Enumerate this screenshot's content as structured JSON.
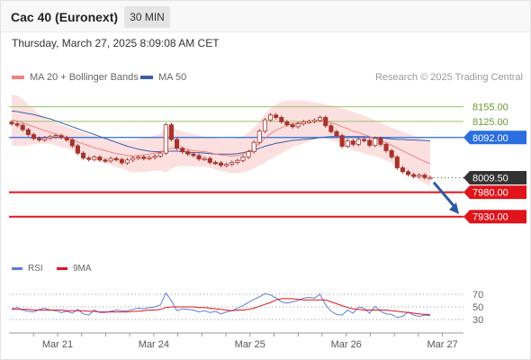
{
  "header": {
    "instrument": "Cac 40 (Euronext)",
    "timeframe": "30 MIN",
    "datetime": "Thursday, March 27, 2025 8:09:08 AM CET"
  },
  "legend": {
    "ma20_bb": "MA 20 + Bollinger Bands",
    "ma50": "MA 50",
    "credit": "Research © 2025 Trading Central",
    "rsi": "RSI",
    "rsi_ma": "9MA"
  },
  "colors": {
    "ma20": "#f08080",
    "ma50": "#3c5fa8",
    "bollinger_fill": "#fbd6d6",
    "candle": "#a8332c",
    "pivot": "#2a6ee0",
    "resistance": "#9cc46a",
    "support": "#e0141b",
    "last": "#333333",
    "rsi": "#5b7fd6",
    "rsi_ma": "#e0141b"
  },
  "chart_data": [
    {
      "type": "candlestick",
      "x_labels": [
        "Mar 21",
        "Mar 24",
        "Mar 25",
        "Mar 26",
        "Mar 27"
      ],
      "ylim": [
        7900,
        8180
      ],
      "levels": [
        {
          "value": 8155.0,
          "label": "8155.00",
          "kind": "resistance"
        },
        {
          "value": 8125.0,
          "label": "8125.00",
          "kind": "resistance"
        },
        {
          "value": 8092.0,
          "label": "8092.00",
          "kind": "pivot"
        },
        {
          "value": 8009.5,
          "label": "8009.50",
          "kind": "last"
        },
        {
          "value": 7980.0,
          "label": "7980.00",
          "kind": "support"
        },
        {
          "value": 7930.0,
          "label": "7930.00",
          "kind": "support"
        }
      ],
      "close": [
        8120,
        8117,
        8108,
        8098,
        8090,
        8087,
        8091,
        8094,
        8096,
        8092,
        8087,
        8075,
        8060,
        8050,
        8047,
        8052,
        8046,
        8044,
        8049,
        8047,
        8040,
        8046,
        8050,
        8052,
        8049,
        8051,
        8054,
        8060,
        8118,
        8088,
        8070,
        8063,
        8058,
        8055,
        8048,
        8049,
        8041,
        8040,
        8035,
        8037,
        8041,
        8045,
        8052,
        8063,
        8082,
        8105,
        8128,
        8138,
        8133,
        8124,
        8118,
        8114,
        8120,
        8124,
        8125,
        8127,
        8133,
        8116,
        8104,
        8096,
        8074,
        8085,
        8078,
        8088,
        8086,
        8076,
        8090,
        8078,
        8065,
        8052,
        8030,
        8022,
        8016,
        8012,
        8015,
        8010,
        8010
      ],
      "ma20": [
        8128,
        8126,
        8122,
        8118,
        8114,
        8110,
        8106,
        8103,
        8099,
        8095,
        8092,
        8088,
        8083,
        8079,
        8075,
        8071,
        8068,
        8065,
        8062,
        8059,
        8057,
        8055,
        8054,
        8055,
        8056,
        8058,
        8060,
        8062,
        8068,
        8070,
        8070,
        8069,
        8067,
        8065,
        8064,
        8063,
        8061,
        8058,
        8056,
        8055,
        8054,
        8055,
        8058,
        8063,
        8070,
        8080,
        8090,
        8100,
        8107,
        8112,
        8117,
        8120,
        8122,
        8124,
        8125,
        8126,
        8127,
        8125,
        8122,
        8119,
        8114,
        8110,
        8105,
        8102,
        8098,
        8094,
        8090,
        8086,
        8081,
        8076,
        8070,
        8065,
        8059,
        8054,
        8048,
        8043,
        8038
      ],
      "ma50": [
        8146,
        8145,
        8143,
        8141,
        8139,
        8136,
        8133,
        8130,
        8126,
        8122,
        8118,
        8114,
        8110,
        8106,
        8102,
        8098,
        8094,
        8090,
        8086,
        8082,
        8078,
        8074,
        8071,
        8068,
        8066,
        8064,
        8063,
        8063,
        8064,
        8064,
        8064,
        8063,
        8062,
        8061,
        8061,
        8060,
        8059,
        8058,
        8058,
        8058,
        8058,
        8059,
        8061,
        8063,
        8066,
        8070,
        8074,
        8077,
        8080,
        8082,
        8084,
        8086,
        8087,
        8088,
        8089,
        8090,
        8092,
        8093,
        8094,
        8094,
        8094,
        8094,
        8094,
        8094,
        8094,
        8093,
        8092,
        8091,
        8090,
        8089,
        8088,
        8088,
        8087,
        8087,
        8086,
        8086,
        8085
      ],
      "bb_upper": [
        8180,
        8178,
        8170,
        8160,
        8150,
        8140,
        8132,
        8127,
        8122,
        8118,
        8114,
        8110,
        8106,
        8102,
        8098,
        8095,
        8092,
        8090,
        8088,
        8087,
        8086,
        8086,
        8087,
        8089,
        8091,
        8093,
        8096,
        8100,
        8115,
        8112,
        8108,
        8104,
        8101,
        8098,
        8096,
        8094,
        8092,
        8090,
        8089,
        8089,
        8089,
        8091,
        8095,
        8102,
        8112,
        8125,
        8140,
        8152,
        8160,
        8165,
        8168,
        8168,
        8168,
        8168,
        8166,
        8164,
        8162,
        8160,
        8158,
        8155,
        8152,
        8148,
        8145,
        8141,
        8137,
        8132,
        8127,
        8122,
        8117,
        8112,
        8108,
        8104,
        8100,
        8096,
        8092,
        8088,
        8084
      ],
      "bb_lower": [
        8076,
        8074,
        8074,
        8076,
        8078,
        8080,
        8080,
        8079,
        8076,
        8072,
        8070,
        8066,
        8060,
        8056,
        8052,
        8047,
        8044,
        8040,
        8036,
        8031,
        8028,
        8024,
        8021,
        8021,
        8021,
        8023,
        8024,
        8024,
        8021,
        8028,
        8032,
        8034,
        8033,
        8032,
        8032,
        8032,
        8030,
        8026,
        8023,
        8021,
        8019,
        8019,
        8021,
        8024,
        8028,
        8035,
        8040,
        8048,
        8054,
        8059,
        8066,
        8072,
        8076,
        8080,
        8084,
        8088,
        8092,
        8090,
        8086,
        8083,
        8076,
        8072,
        8065,
        8063,
        8059,
        8056,
        8053,
        8050,
        8045,
        8040,
        8032,
        8026,
        8018,
        8012,
        8004,
        7998,
        7992
      ]
    },
    {
      "type": "line",
      "title": "RSI",
      "yticks": [
        70,
        50,
        30
      ],
      "ylim": [
        20,
        80
      ],
      "series": [
        {
          "name": "RSI",
          "values": [
            47,
            49,
            45,
            43,
            42,
            46,
            48,
            45,
            44,
            41,
            43,
            40,
            46,
            39,
            37,
            45,
            41,
            41,
            43,
            45,
            44,
            44,
            46,
            48,
            47,
            49,
            50,
            53,
            72,
            60,
            44,
            47,
            46,
            45,
            42,
            44,
            41,
            43,
            39,
            42,
            44,
            48,
            52,
            57,
            62,
            66,
            71,
            69,
            64,
            58,
            56,
            58,
            60,
            64,
            65,
            64,
            70,
            53,
            43,
            38,
            37,
            45,
            40,
            50,
            48,
            40,
            51,
            43,
            39,
            38,
            33,
            35,
            42,
            37,
            35,
            37,
            36
          ]
        },
        {
          "name": "9MA",
          "values": [
            46,
            46,
            46,
            46,
            45,
            45,
            45,
            45,
            45,
            45,
            44,
            44,
            44,
            44,
            43,
            43,
            42,
            42,
            42,
            42,
            42,
            42,
            43,
            43,
            44,
            45,
            45,
            46,
            49,
            50,
            50,
            50,
            50,
            50,
            49,
            49,
            48,
            47,
            46,
            45,
            44,
            45,
            45,
            46,
            48,
            51,
            54,
            57,
            61,
            63,
            63,
            63,
            62,
            61,
            61,
            61,
            61,
            61,
            58,
            55,
            52,
            49,
            47,
            46,
            45,
            45,
            45,
            45,
            45,
            44,
            43,
            42,
            41,
            40,
            39,
            38,
            38
          ]
        }
      ]
    }
  ]
}
